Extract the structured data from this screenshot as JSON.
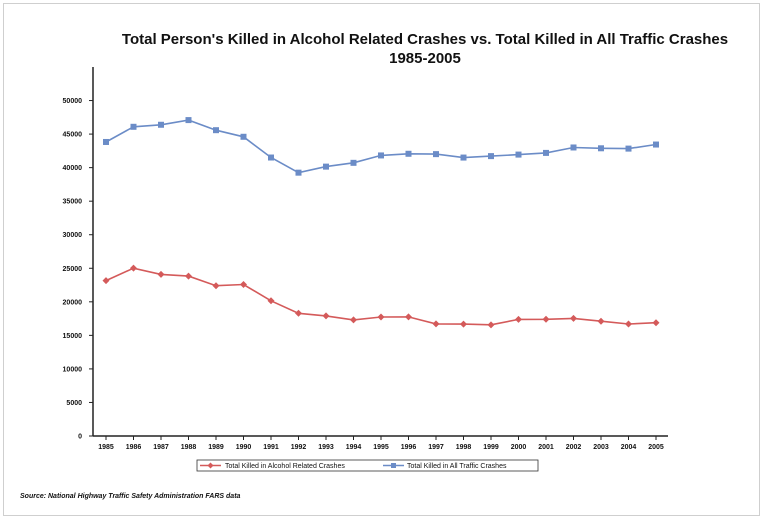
{
  "chart_data": {
    "type": "line",
    "title": "Total Person's Killed in Alcohol Related Crashes vs. Total Killed in All Traffic Crashes",
    "subtitle": "1985-2005",
    "xlabel": "",
    "ylabel": "",
    "categories": [
      "1985",
      "1986",
      "1987",
      "1988",
      "1989",
      "1990",
      "1991",
      "1992",
      "1993",
      "1994",
      "1995",
      "1996",
      "1997",
      "1998",
      "1999",
      "2000",
      "2001",
      "2002",
      "2003",
      "2004",
      "2005"
    ],
    "yticks": [
      "0",
      "5000",
      "10000",
      "15000",
      "20000",
      "25000",
      "30000",
      "35000",
      "40000",
      "45000",
      "50000"
    ],
    "ylim": [
      0,
      55000
    ],
    "grid": false,
    "legend_position": "bottom",
    "series": [
      {
        "name": "Total Killed in Alcohol Related Crashes",
        "color": "#d45a5a",
        "marker": "diamond",
        "values": [
          23167,
          25017,
          24094,
          23833,
          22404,
          22587,
          20159,
          18290,
          17908,
          17308,
          17732,
          17749,
          16711,
          16673,
          16572,
          17380,
          17400,
          17524,
          17105,
          16694,
          16885
        ]
      },
      {
        "name": "Total Killed in All Traffic Crashes",
        "color": "#6b8cc7",
        "marker": "square",
        "values": [
          43825,
          46087,
          46390,
          47087,
          45582,
          44599,
          41508,
          39250,
          40150,
          40716,
          41817,
          42065,
          42013,
          41501,
          41717,
          41945,
          42196,
          43005,
          42884,
          42836,
          43443
        ]
      }
    ]
  },
  "source": "Source: National Highway Traffic Safety Administration FARS data"
}
